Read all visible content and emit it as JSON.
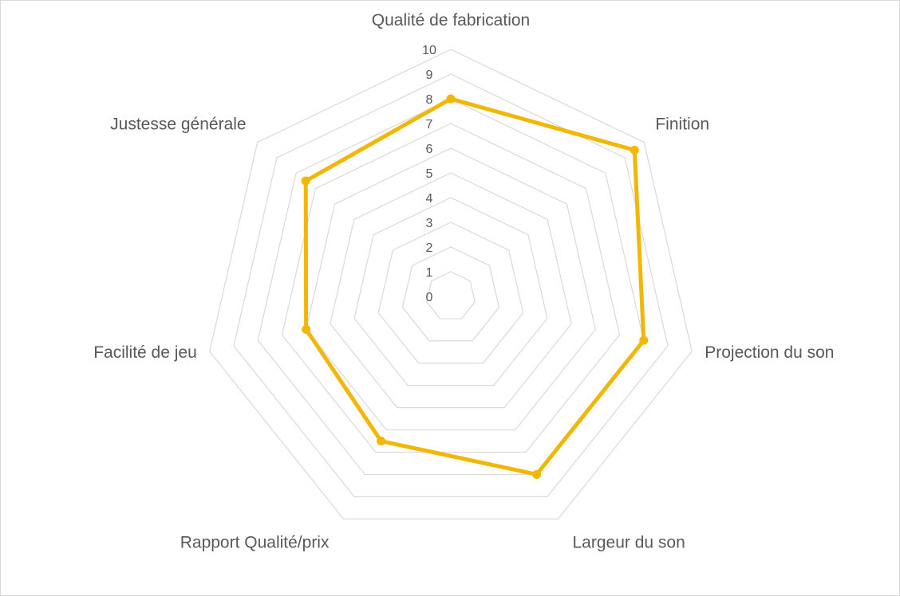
{
  "chart_data": {
    "type": "radar",
    "title": "",
    "axes": [
      "Qualité de fabrication",
      "Finition",
      "Projection du son",
      "Largeur du son",
      "Rapport Qualité/prix",
      "Facilité de jeu",
      "Justesse générale"
    ],
    "values": [
      8,
      9.5,
      8,
      8,
      6.5,
      6,
      7.5
    ],
    "rmin": 0,
    "rmax": 10,
    "ticks": [
      "0",
      "1",
      "2",
      "3",
      "4",
      "5",
      "6",
      "7",
      "8",
      "9",
      "10"
    ],
    "legend": "none",
    "grid": true,
    "series_color": "#f2b705",
    "grid_color": "#d9d9d9",
    "label_color": "#595959"
  }
}
